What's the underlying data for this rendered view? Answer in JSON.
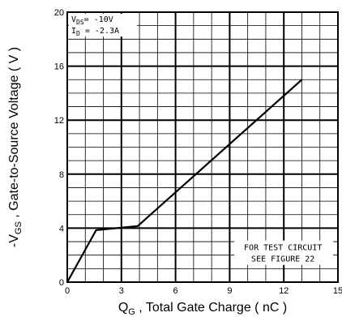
{
  "chart_data": {
    "type": "line",
    "title": "",
    "xlabel": {
      "main": "Q",
      "sub": "G",
      "rest": " , Total Gate Charge ( nC )"
    },
    "ylabel": {
      "pre": "-V",
      "sub": "GS",
      "rest": " , Gate-to-Source Voltage ( V )"
    },
    "xlim": [
      0,
      15
    ],
    "ylim": [
      0,
      20
    ],
    "xticks": [
      "0",
      "3",
      "6",
      "9",
      "12",
      "15"
    ],
    "yticks": [
      "0",
      "4",
      "8",
      "12",
      "16",
      "20"
    ],
    "grid": true,
    "series": [
      {
        "x": [
          0,
          1.6,
          3.9,
          13.0
        ],
        "y": [
          0,
          3.85,
          4.15,
          15.0
        ]
      }
    ],
    "conditions": [
      {
        "main": "V",
        "sub": "DS",
        "rest": "= -10V"
      },
      {
        "main": "I",
        "sub": "D",
        "rest": " = -2.3A"
      }
    ],
    "note_lines": [
      "FOR TEST CIRCUIT",
      "SEE FIGURE 22"
    ]
  }
}
